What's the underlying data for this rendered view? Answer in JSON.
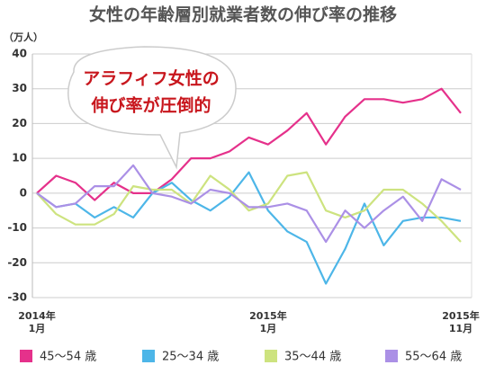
{
  "chart_data": {
    "type": "line",
    "title": "女性の年齢層別就業者数の伸び率の推移",
    "y_label": "（万人）",
    "annotation": [
      "アラフィフ女性の",
      "伸び率が圧倒的"
    ],
    "categories": [
      "2014年\n1月",
      null,
      null,
      null,
      null,
      null,
      null,
      null,
      null,
      null,
      null,
      null,
      "2015年\n1月",
      null,
      null,
      null,
      null,
      null,
      null,
      null,
      null,
      null,
      "2015年\n11月"
    ],
    "series": [
      {
        "name": "45～54 歳",
        "color": "#e5318b",
        "values": [
          0,
          5,
          3,
          -2,
          3,
          0,
          0,
          4,
          10,
          10,
          12,
          16,
          14,
          18,
          23,
          14,
          22,
          27,
          27,
          26,
          27,
          30,
          23
        ]
      },
      {
        "name": "25～34 歳",
        "color": "#4db6e8",
        "values": [
          0,
          -4,
          -3,
          -7,
          -4,
          -7,
          0,
          3,
          -2,
          -5,
          -1,
          6,
          -5,
          -11,
          -14,
          -26,
          -16,
          -3,
          -15,
          -8,
          -7,
          -7,
          -8
        ]
      },
      {
        "name": "35～44 歳",
        "color": "#cde37f",
        "values": [
          0,
          -6,
          -9,
          -9,
          -6,
          2,
          1,
          1,
          -3,
          5,
          1,
          -5,
          -3,
          5,
          6,
          -5,
          -7,
          -5,
          1,
          1,
          -3,
          -8,
          -14
        ]
      },
      {
        "name": "55～64 歳",
        "color": "#ab90e6",
        "values": [
          0,
          -4,
          -3,
          2,
          2,
          8,
          0,
          -1,
          -3,
          1,
          0,
          -4,
          -4,
          -3,
          -5,
          -14,
          -5,
          -10,
          -5,
          -1,
          -8,
          4,
          1
        ]
      }
    ],
    "ylim": [
      -30,
      40
    ],
    "yticks": [
      -30,
      -20,
      -10,
      0,
      10,
      20,
      30,
      40
    ],
    "grid": true
  }
}
